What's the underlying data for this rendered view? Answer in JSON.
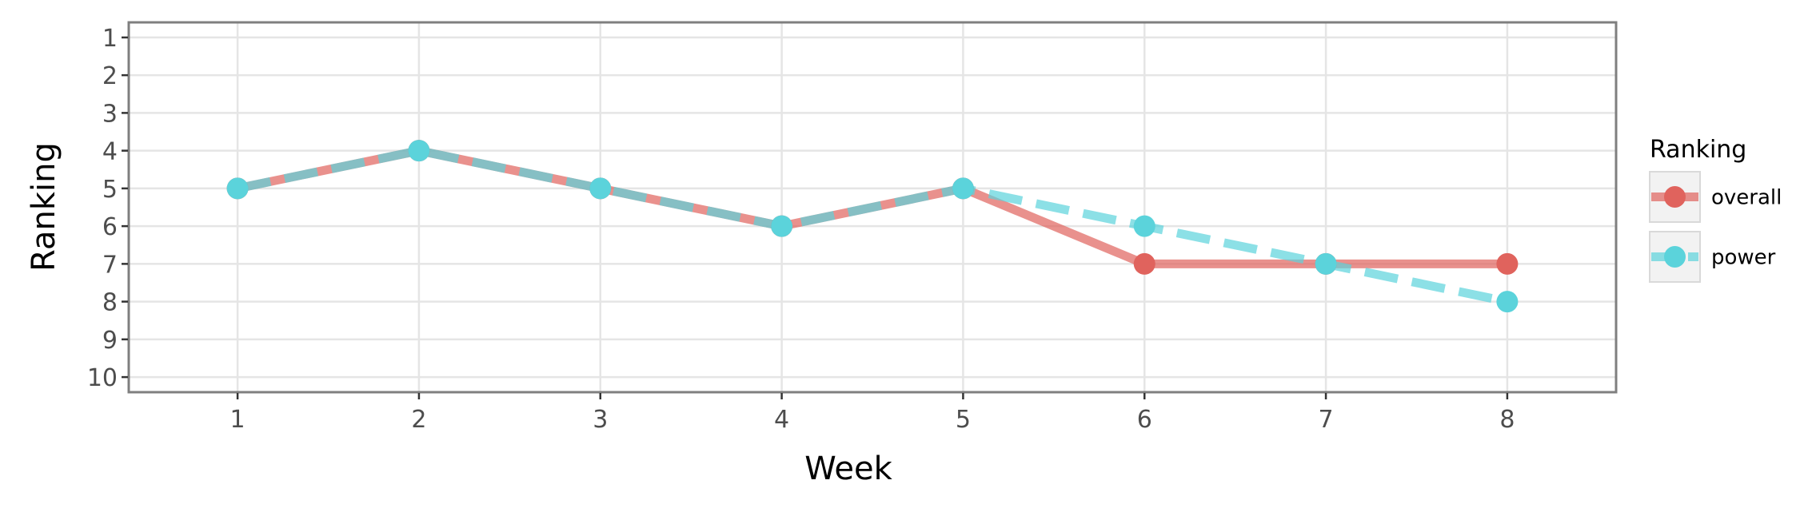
{
  "chart_data": {
    "type": "line",
    "title": "",
    "xlabel": "Week",
    "ylabel": "Ranking",
    "x": [
      1,
      2,
      3,
      4,
      5,
      6,
      7,
      8
    ],
    "x_ticks": [
      "1",
      "2",
      "3",
      "4",
      "5",
      "6",
      "7",
      "8"
    ],
    "y_ticks": [
      "1",
      "2",
      "3",
      "4",
      "5",
      "6",
      "7",
      "8",
      "9",
      "10"
    ],
    "xlim": [
      0.4,
      8.6
    ],
    "ylim": [
      10.4,
      0.6
    ],
    "y_reversed": true,
    "grid": true,
    "legend": {
      "title": "Ranking",
      "position": "right"
    },
    "series": [
      {
        "name": "overall",
        "color": "#E0635D",
        "line_style": "solid",
        "values": [
          5,
          4,
          5,
          6,
          5,
          7,
          7,
          7
        ]
      },
      {
        "name": "power",
        "color": "#5BD3DB",
        "line_style": "dashed",
        "values": [
          5,
          4,
          5,
          6,
          5,
          6,
          7,
          8
        ]
      }
    ]
  }
}
